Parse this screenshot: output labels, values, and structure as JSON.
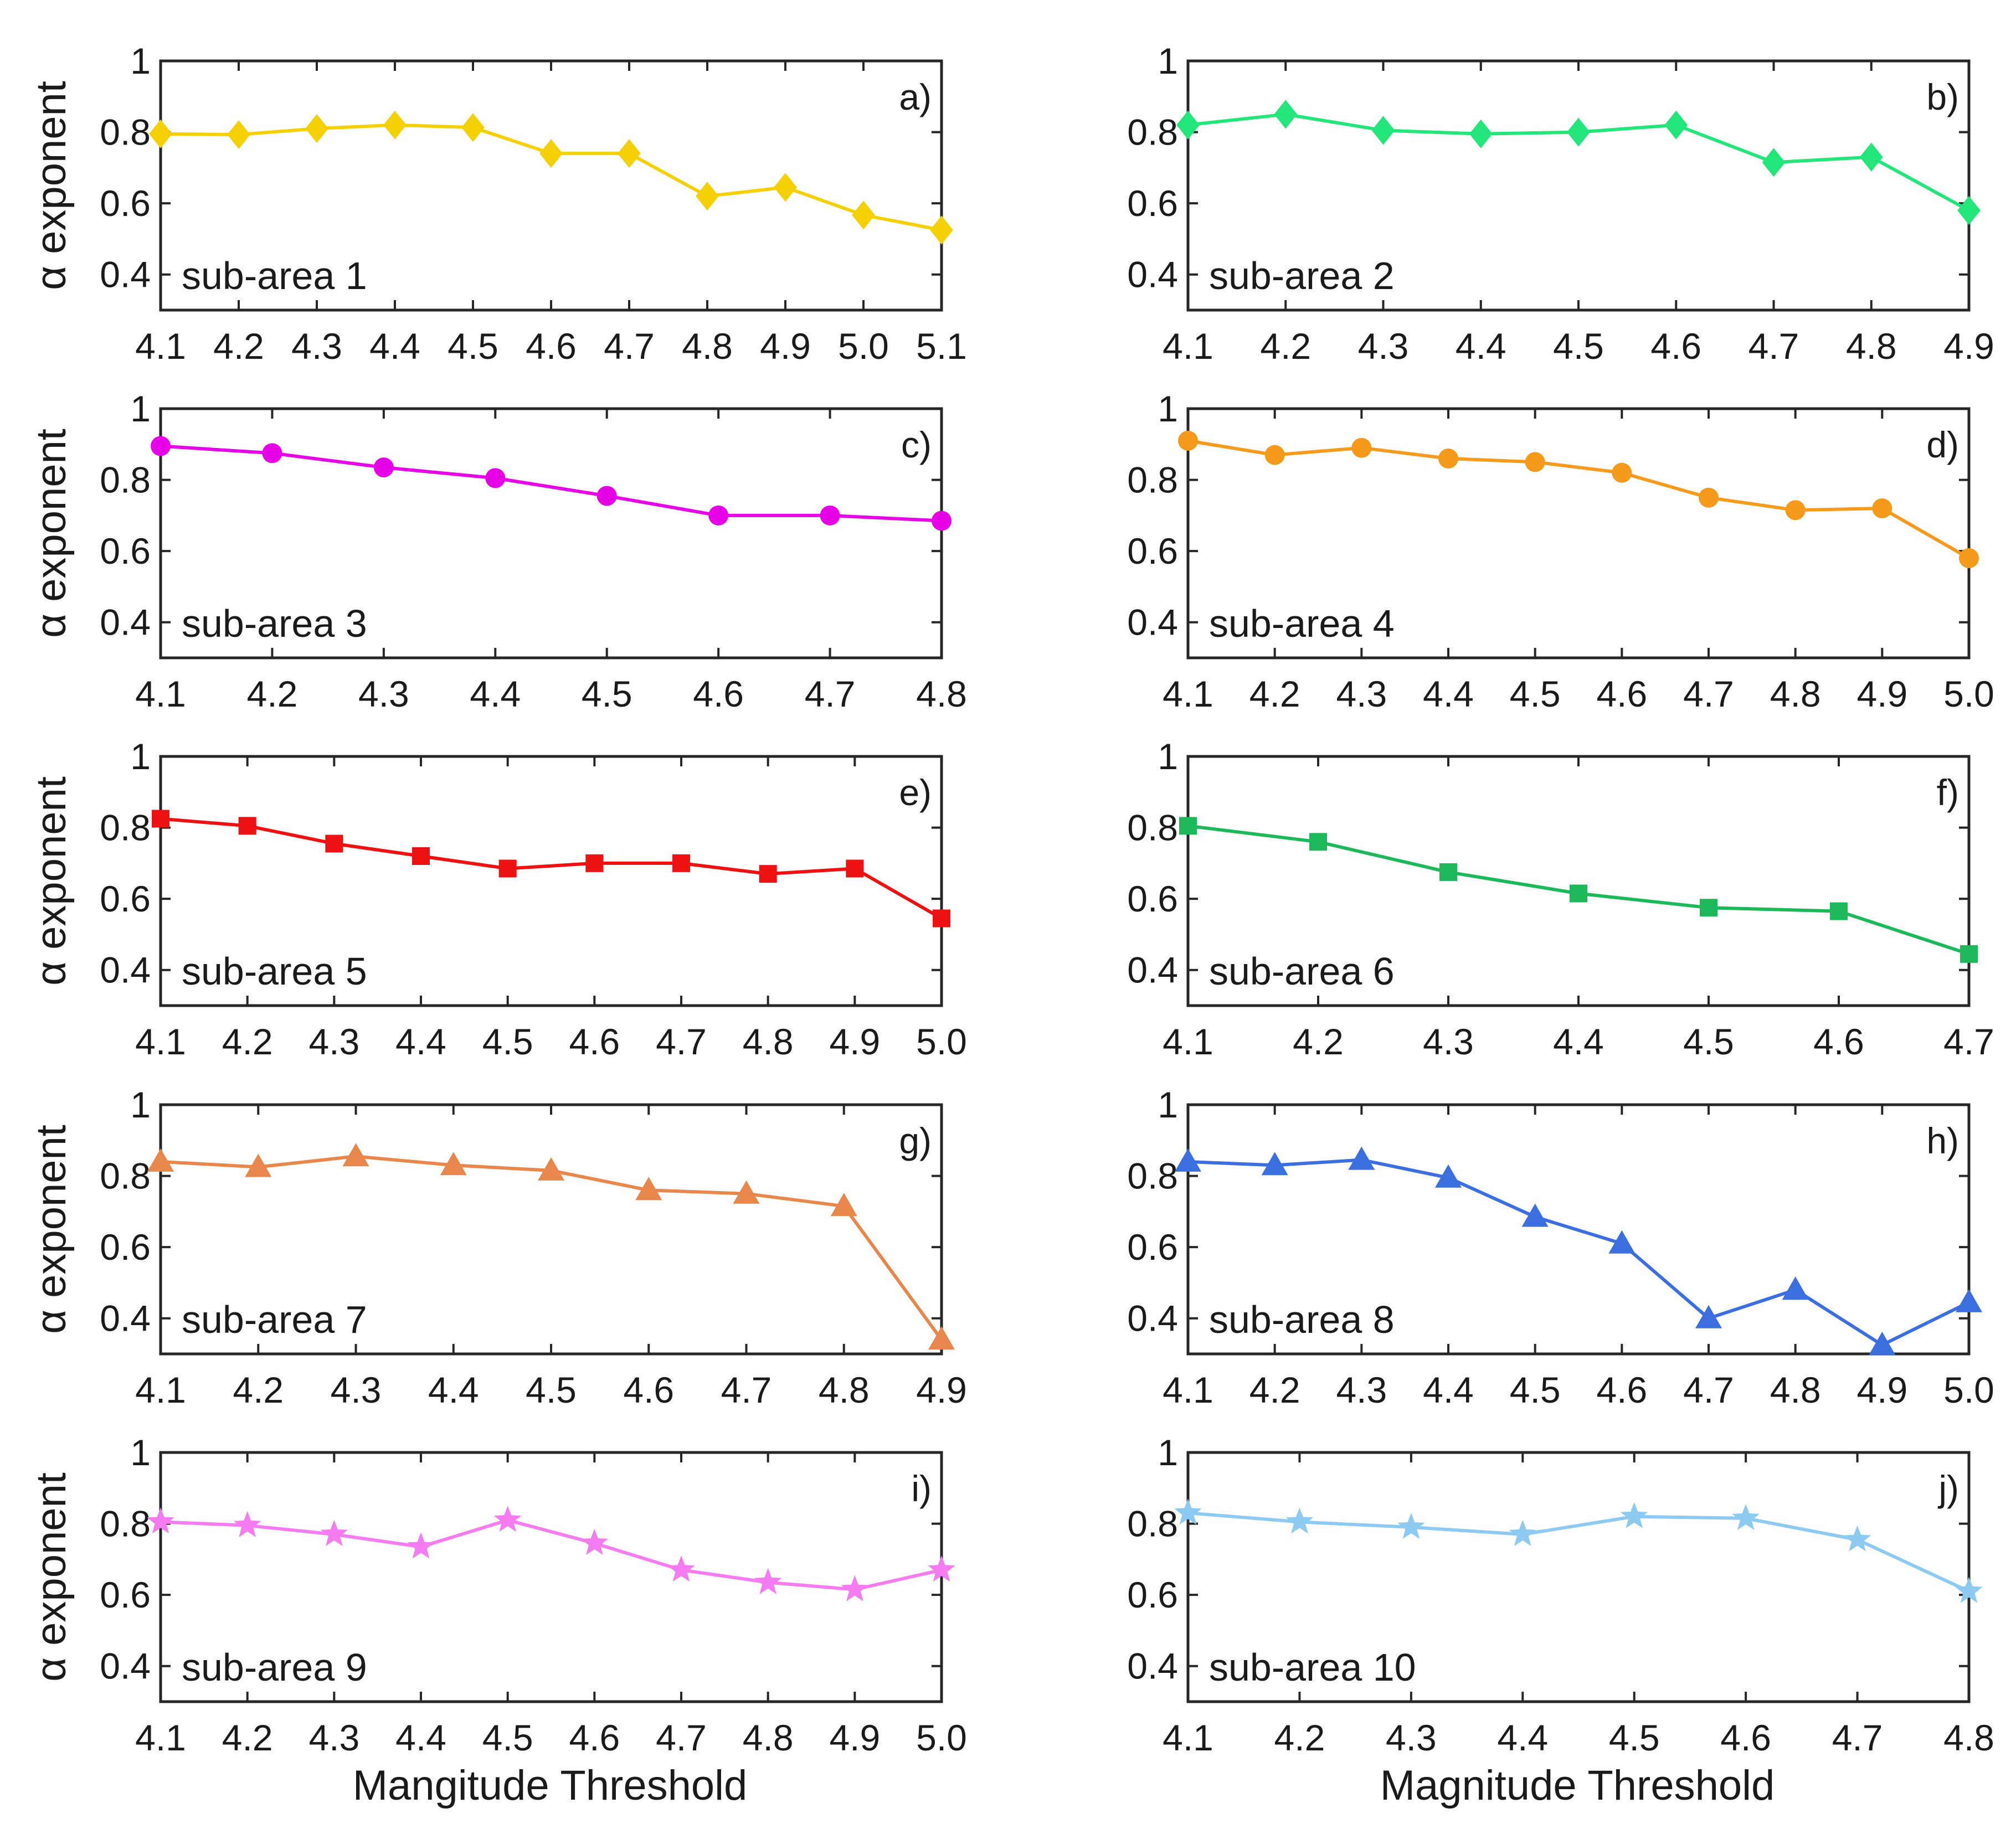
{
  "figure": {
    "ylabel": "α exponent",
    "xlabel_left": "Mangitude Threshold",
    "xlabel_right": "Magnitude Threshold"
  },
  "chart_data": [
    {
      "panel": "a)",
      "label": "sub-area 1",
      "type": "line",
      "marker": "diamond",
      "color": "#f5d000",
      "x": [
        4.1,
        4.2,
        4.3,
        4.4,
        4.5,
        4.6,
        4.7,
        4.8,
        4.9,
        5.0,
        5.1
      ],
      "y": [
        0.795,
        0.793,
        0.81,
        0.82,
        0.813,
        0.74,
        0.74,
        0.62,
        0.645,
        0.567,
        0.525
      ],
      "xticks": [
        "4.1",
        "4.2",
        "4.3",
        "4.4",
        "4.5",
        "4.6",
        "4.7",
        "4.8",
        "4.9",
        "5.0",
        "5.1"
      ],
      "xlim": [
        4.1,
        5.1
      ],
      "ylim": [
        0.3,
        1.0
      ],
      "yticks": [
        "0.4",
        "0.6",
        "0.8",
        "1"
      ]
    },
    {
      "panel": "b)",
      "label": "sub-area 2",
      "type": "line",
      "marker": "diamond",
      "color": "#22e67a",
      "x": [
        4.1,
        4.2,
        4.3,
        4.4,
        4.5,
        4.6,
        4.7,
        4.8,
        4.9
      ],
      "y": [
        0.82,
        0.85,
        0.805,
        0.795,
        0.8,
        0.82,
        0.715,
        0.73,
        0.58
      ],
      "xticks": [
        "4.1",
        "4.2",
        "4.3",
        "4.4",
        "4.5",
        "4.6",
        "4.7",
        "4.8",
        "4.9"
      ],
      "xlim": [
        4.1,
        4.9
      ],
      "ylim": [
        0.3,
        1.0
      ],
      "yticks": [
        "0.4",
        "0.6",
        "0.8",
        "1"
      ]
    },
    {
      "panel": "c)",
      "label": "sub-area 3",
      "type": "line",
      "marker": "circle",
      "color": "#e600e6",
      "x": [
        4.1,
        4.2,
        4.3,
        4.4,
        4.5,
        4.6,
        4.7,
        4.8
      ],
      "y": [
        0.895,
        0.875,
        0.835,
        0.805,
        0.755,
        0.7,
        0.7,
        0.685
      ],
      "xticks": [
        "4.1",
        "4.2",
        "4.3",
        "4.4",
        "4.5",
        "4.6",
        "4.7",
        "4.8"
      ],
      "xlim": [
        4.1,
        4.8
      ],
      "ylim": [
        0.3,
        1.0
      ],
      "yticks": [
        "0.4",
        "0.6",
        "0.8",
        "1"
      ]
    },
    {
      "panel": "d)",
      "label": "sub-area 4",
      "type": "line",
      "marker": "circle",
      "color": "#f59a1a",
      "x": [
        4.1,
        4.2,
        4.3,
        4.4,
        4.5,
        4.6,
        4.7,
        4.8,
        4.9,
        5.0
      ],
      "y": [
        0.91,
        0.87,
        0.89,
        0.86,
        0.85,
        0.82,
        0.75,
        0.715,
        0.72,
        0.58
      ],
      "xticks": [
        "4.1",
        "4.2",
        "4.3",
        "4.4",
        "4.5",
        "4.6",
        "4.7",
        "4.8",
        "4.9",
        "5.0"
      ],
      "xlim": [
        4.1,
        5.0
      ],
      "ylim": [
        0.3,
        1.0
      ],
      "yticks": [
        "0.4",
        "0.6",
        "0.8",
        "1"
      ]
    },
    {
      "panel": "e)",
      "label": "sub-area 5",
      "type": "line",
      "marker": "square",
      "color": "#ee1111",
      "x": [
        4.1,
        4.2,
        4.3,
        4.4,
        4.5,
        4.6,
        4.7,
        4.8,
        4.9,
        5.0
      ],
      "y": [
        0.825,
        0.805,
        0.755,
        0.72,
        0.685,
        0.7,
        0.7,
        0.67,
        0.685,
        0.545
      ],
      "xticks": [
        "4.1",
        "4.2",
        "4.3",
        "4.4",
        "4.5",
        "4.6",
        "4.7",
        "4.8",
        "4.9",
        "5.0"
      ],
      "xlim": [
        4.1,
        5.0
      ],
      "ylim": [
        0.3,
        1.0
      ],
      "yticks": [
        "0.4",
        "0.6",
        "0.8",
        "1"
      ]
    },
    {
      "panel": "f)",
      "label": "sub-area 6",
      "type": "line",
      "marker": "square",
      "color": "#1db85a",
      "x": [
        4.1,
        4.2,
        4.3,
        4.4,
        4.5,
        4.6,
        4.7
      ],
      "y": [
        0.805,
        0.76,
        0.675,
        0.615,
        0.575,
        0.565,
        0.445
      ],
      "xticks": [
        "4.1",
        "4.2",
        "4.3",
        "4.4",
        "4.5",
        "4.6",
        "4.7"
      ],
      "xlim": [
        4.1,
        4.7
      ],
      "ylim": [
        0.3,
        1.0
      ],
      "yticks": [
        "0.4",
        "0.6",
        "0.8",
        "1"
      ]
    },
    {
      "panel": "g)",
      "label": "sub-area 7",
      "type": "line",
      "marker": "triangle",
      "color": "#e8874c",
      "x": [
        4.1,
        4.2,
        4.3,
        4.4,
        4.5,
        4.6,
        4.7,
        4.8,
        4.9
      ],
      "y": [
        0.84,
        0.825,
        0.855,
        0.83,
        0.815,
        0.76,
        0.75,
        0.715,
        0.34
      ],
      "xticks": [
        "4.1",
        "4.2",
        "4.3",
        "4.4",
        "4.5",
        "4.6",
        "4.7",
        "4.8",
        "4.9"
      ],
      "xlim": [
        4.1,
        4.9
      ],
      "ylim": [
        0.3,
        1.0
      ],
      "yticks": [
        "0.4",
        "0.6",
        "0.8",
        "1"
      ]
    },
    {
      "panel": "h)",
      "label": "sub-area 8",
      "type": "line",
      "marker": "triangle",
      "color": "#3b6fe0",
      "x": [
        4.1,
        4.2,
        4.3,
        4.4,
        4.5,
        4.6,
        4.7,
        4.8,
        4.9,
        5.0
      ],
      "y": [
        0.84,
        0.83,
        0.845,
        0.795,
        0.685,
        0.61,
        0.4,
        0.48,
        0.325,
        0.445
      ],
      "xticks": [
        "4.1",
        "4.2",
        "4.3",
        "4.4",
        "4.5",
        "4.6",
        "4.7",
        "4.8",
        "4.9",
        "5.0"
      ],
      "xlim": [
        4.1,
        5.0
      ],
      "ylim": [
        0.3,
        1.0
      ],
      "yticks": [
        "0.4",
        "0.6",
        "0.8",
        "1"
      ]
    },
    {
      "panel": "i)",
      "label": "sub-area 9",
      "type": "line",
      "marker": "star",
      "color": "#f47cf0",
      "x": [
        4.1,
        4.2,
        4.3,
        4.4,
        4.5,
        4.6,
        4.7,
        4.8,
        4.9,
        5.0
      ],
      "y": [
        0.805,
        0.795,
        0.77,
        0.735,
        0.81,
        0.745,
        0.67,
        0.635,
        0.615,
        0.67
      ],
      "xticks": [
        "4.1",
        "4.2",
        "4.3",
        "4.4",
        "4.5",
        "4.6",
        "4.7",
        "4.8",
        "4.9",
        "5.0"
      ],
      "xlim": [
        4.1,
        5.0
      ],
      "ylim": [
        0.3,
        1.0
      ],
      "yticks": [
        "0.4",
        "0.6",
        "0.8",
        "1"
      ]
    },
    {
      "panel": "j)",
      "label": "sub-area 10",
      "type": "line",
      "marker": "star",
      "color": "#8ccaf2",
      "x": [
        4.1,
        4.2,
        4.3,
        4.4,
        4.5,
        4.6,
        4.7,
        4.8
      ],
      "y": [
        0.83,
        0.805,
        0.79,
        0.77,
        0.82,
        0.815,
        0.755,
        0.61
      ],
      "xticks": [
        "4.1",
        "4.2",
        "4.3",
        "4.4",
        "4.5",
        "4.6",
        "4.7",
        "4.8"
      ],
      "xlim": [
        4.1,
        4.8
      ],
      "ylim": [
        0.3,
        1.0
      ],
      "yticks": [
        "0.4",
        "0.6",
        "0.8",
        "1"
      ]
    }
  ]
}
